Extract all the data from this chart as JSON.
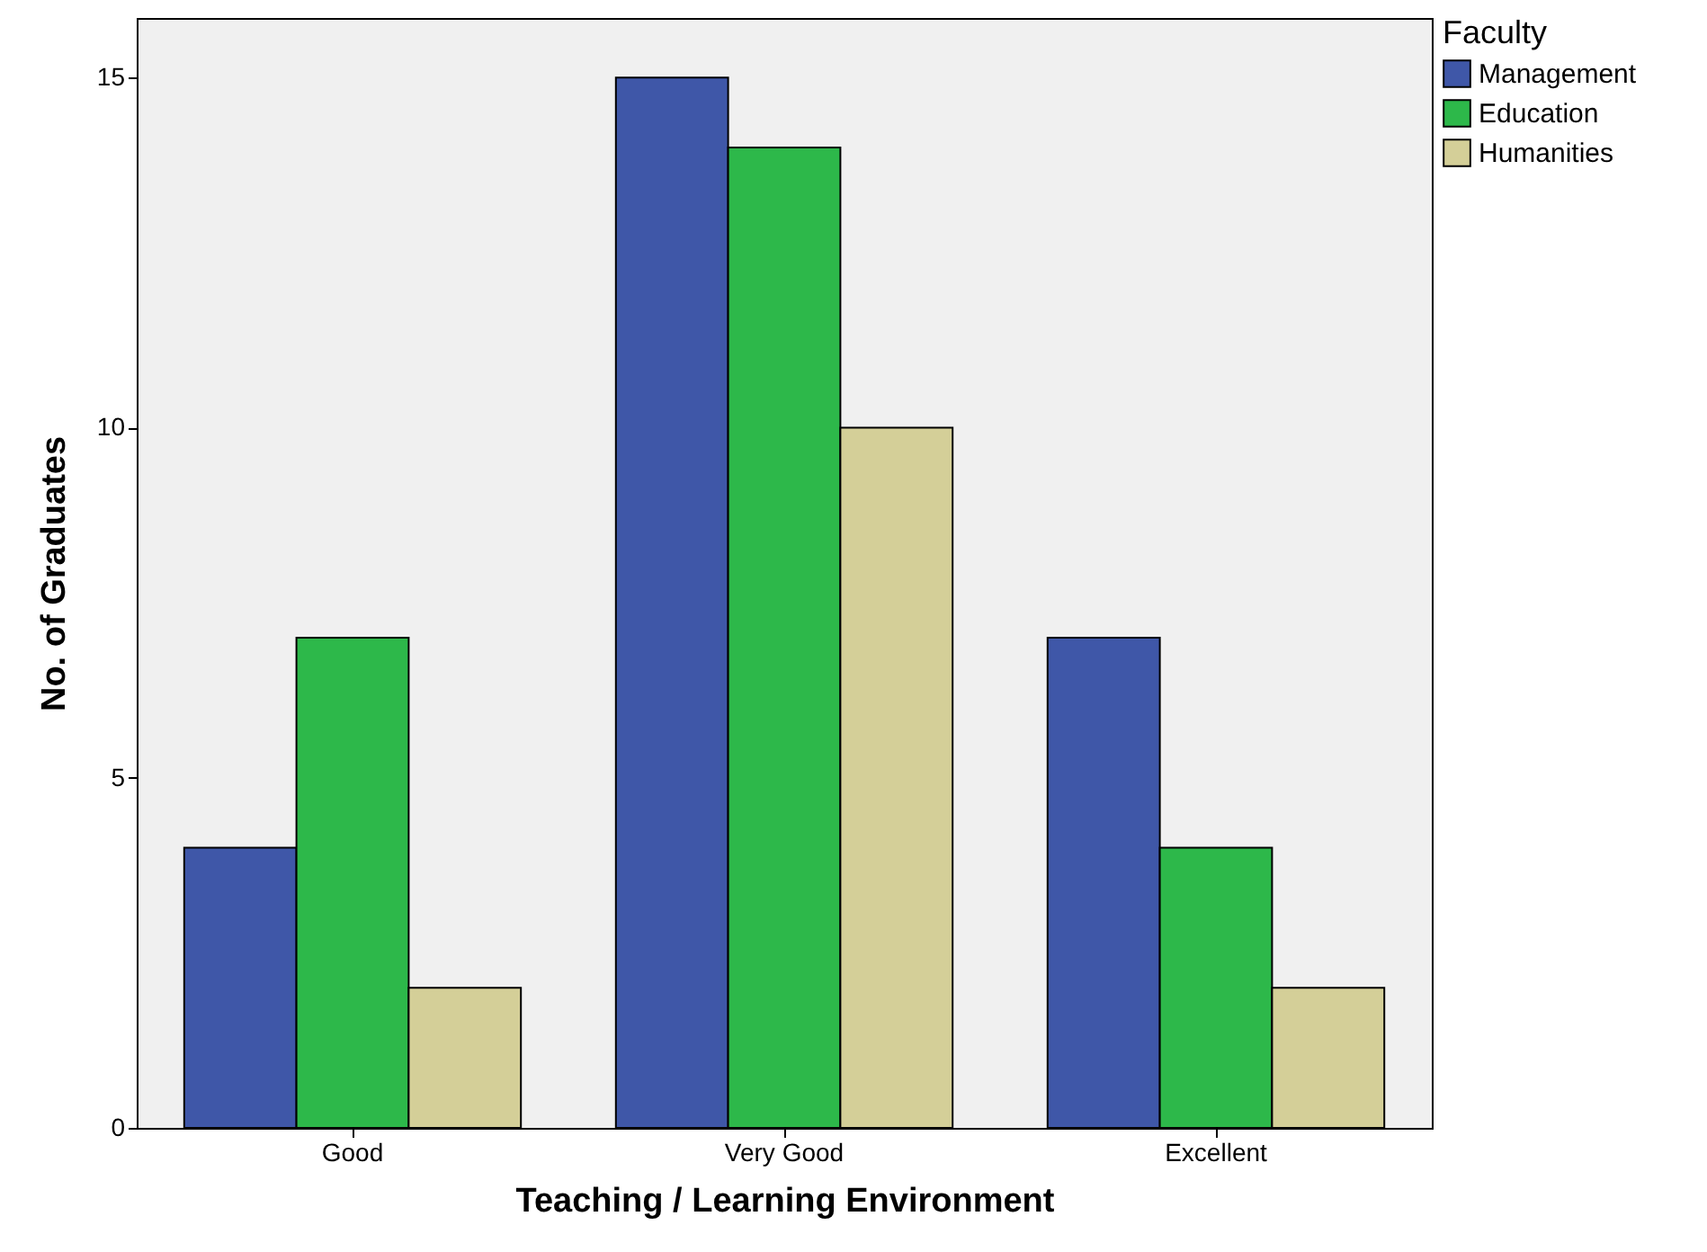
{
  "chart_data": {
    "type": "bar",
    "xlabel": "Teaching / Learning Environment",
    "ylabel": "No. of Graduates",
    "legend_title": "Faculty",
    "categories": [
      "Good",
      "Very Good",
      "Excellent"
    ],
    "series": [
      {
        "name": "Management",
        "color": "#3f57a8",
        "values": [
          4,
          15,
          7
        ]
      },
      {
        "name": "Education",
        "color": "#2db84a",
        "values": [
          7,
          14,
          4
        ]
      },
      {
        "name": "Humanities",
        "color": "#d4cf98",
        "values": [
          2,
          10,
          2
        ]
      }
    ],
    "ylim": [
      0,
      15.85
    ],
    "yticks": [
      0,
      5,
      10,
      15
    ],
    "grid": false,
    "legend": "top right"
  }
}
